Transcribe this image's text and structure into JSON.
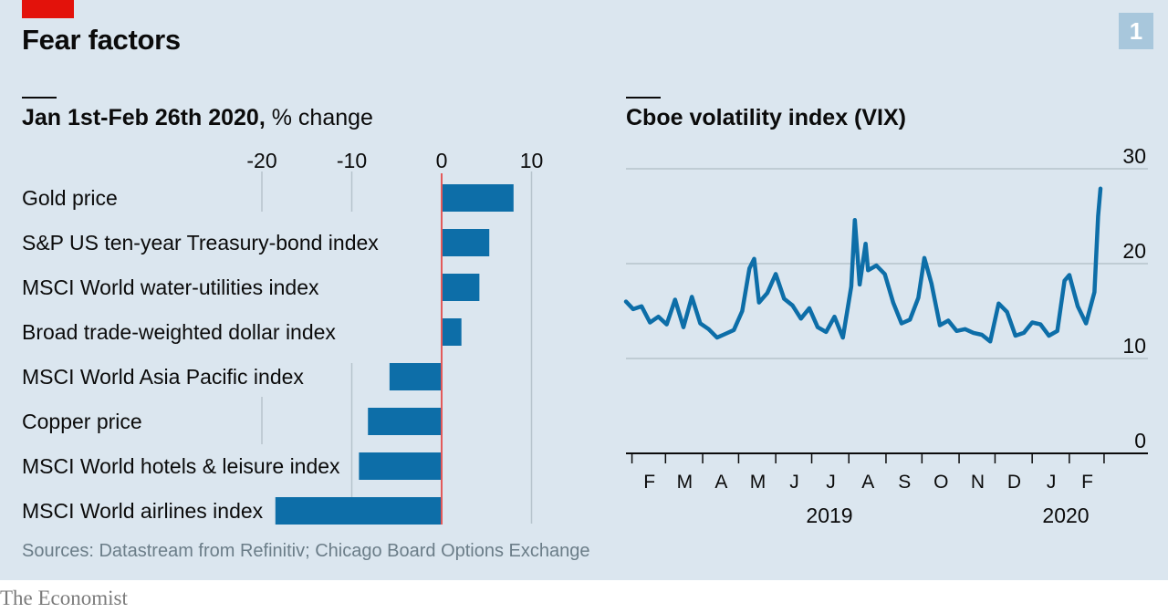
{
  "header": {
    "title": "Fear factors",
    "chart_number": "1"
  },
  "left_panel": {
    "title_bold": "Jan 1st-Feb 26th 2020,",
    "title_unit": " % change"
  },
  "right_panel": {
    "title": "Cboe volatility index (VIX)"
  },
  "sources": "Sources: Datastream from Refinitiv; Chicago Board Options Exchange",
  "brand": "The Economist",
  "colors": {
    "bar": "#0d6ea8",
    "line": "#0d6ea8",
    "zero_line": "#e35a5a",
    "gridline": "#b6c3cc",
    "background": "#dbe6ef",
    "accent": "#e3120b"
  },
  "chart_data": [
    {
      "type": "bar",
      "orientation": "horizontal",
      "title": "Jan 1st-Feb 26th 2020, % change",
      "categories": [
        "Gold price",
        "S&P US ten-year Treasury-bond index",
        "MSCI World water-utilities index",
        "Broad trade-weighted dollar index",
        "MSCI World Asia Pacific index",
        "Copper price",
        "MSCI World hotels & leisure index",
        "MSCI World airlines index"
      ],
      "values": [
        8,
        5.3,
        4.2,
        2.2,
        -5.8,
        -8.2,
        -9.2,
        -18.5
      ],
      "xlim": [
        -22,
        12
      ],
      "ticks": [
        -20,
        -10,
        0,
        10
      ],
      "tick_labels": [
        "-20",
        "-10",
        "0",
        "10"
      ],
      "grid": true
    },
    {
      "type": "line",
      "title": "Cboe volatility index (VIX)",
      "ylim": [
        0,
        30
      ],
      "yticks": [
        0,
        10,
        20,
        30
      ],
      "ytick_labels": [
        "0",
        "10",
        "20",
        "30"
      ],
      "month_labels": [
        "F",
        "M",
        "A",
        "M",
        "J",
        "J",
        "A",
        "S",
        "O",
        "N",
        "D",
        "J",
        "F"
      ],
      "year_labels": [
        "2019",
        "2020"
      ],
      "x_range": [
        "2019-01-26",
        "2020-02-26"
      ],
      "series": [
        {
          "x": [
            "2019-01-26",
            "2019-02-01",
            "2019-02-08",
            "2019-02-15",
            "2019-02-22",
            "2019-03-01",
            "2019-03-08",
            "2019-03-15",
            "2019-03-22",
            "2019-03-29",
            "2019-04-05",
            "2019-04-12",
            "2019-04-19",
            "2019-04-26",
            "2019-05-03",
            "2019-05-09",
            "2019-05-13",
            "2019-05-17",
            "2019-05-24",
            "2019-05-31",
            "2019-06-07",
            "2019-06-14",
            "2019-06-21",
            "2019-06-28",
            "2019-07-05",
            "2019-07-12",
            "2019-07-19",
            "2019-07-26",
            "2019-08-02",
            "2019-08-05",
            "2019-08-09",
            "2019-08-14",
            "2019-08-16",
            "2019-08-23",
            "2019-08-30",
            "2019-09-06",
            "2019-09-13",
            "2019-09-20",
            "2019-09-27",
            "2019-10-02",
            "2019-10-08",
            "2019-10-15",
            "2019-10-22",
            "2019-10-29",
            "2019-11-05",
            "2019-11-12",
            "2019-11-19",
            "2019-11-26",
            "2019-12-03",
            "2019-12-10",
            "2019-12-17",
            "2019-12-24",
            "2019-12-31",
            "2020-01-07",
            "2020-01-14",
            "2020-01-21",
            "2020-01-27",
            "2020-01-31",
            "2020-02-07",
            "2020-02-14",
            "2020-02-21",
            "2020-02-24",
            "2020-02-26"
          ],
          "y": [
            16,
            15.2,
            15.5,
            13.8,
            14.4,
            13.6,
            16.2,
            13.3,
            16.5,
            13.7,
            13.1,
            12.2,
            12.6,
            13,
            15,
            19.5,
            20.5,
            15.9,
            16.9,
            18.9,
            16.3,
            15.6,
            14.2,
            15.3,
            13.3,
            12.8,
            14.4,
            12.2,
            17.6,
            24.6,
            17.8,
            22.1,
            19.3,
            19.8,
            18.9,
            15.9,
            13.7,
            14.1,
            16.4,
            20.6,
            17.9,
            13.5,
            14,
            12.9,
            13.1,
            12.7,
            12.5,
            11.8,
            15.8,
            14.9,
            12.4,
            12.7,
            13.8,
            13.6,
            12.4,
            12.9,
            18.2,
            18.8,
            15.5,
            13.7,
            17,
            25,
            27.9
          ]
        }
      ]
    }
  ]
}
